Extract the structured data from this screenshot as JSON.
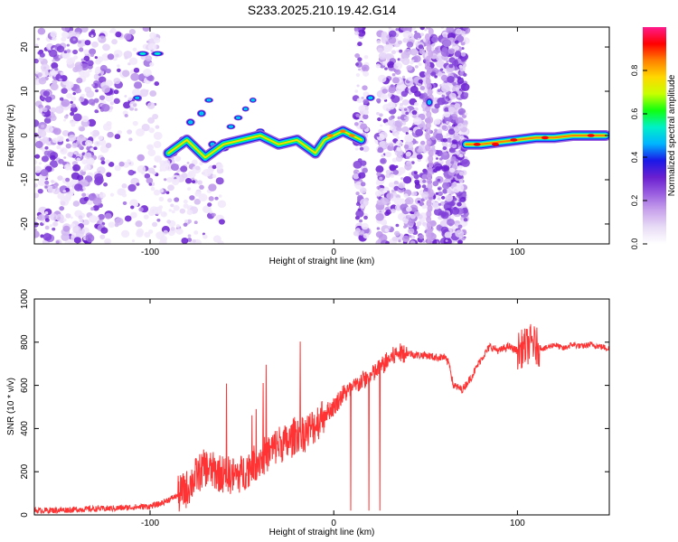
{
  "title": "S233.2025.210.19.42.G14",
  "chart_data": [
    {
      "type": "heatmap",
      "xlabel": "Height of straight line (km)",
      "ylabel": "Frequency (Hz)",
      "xlim": [
        -163,
        150
      ],
      "ylim": [
        -24.5,
        24.5
      ],
      "x_ticks": [
        -100,
        0,
        100
      ],
      "y_ticks": [
        -20,
        -10,
        0,
        10,
        20
      ],
      "colorbar": {
        "label": "Normalized spectral amplitude",
        "range": [
          0,
          1
        ],
        "ticks": [
          0.0,
          0.2,
          0.4,
          0.6,
          0.8
        ],
        "tick_labels": [
          "0.0",
          "0.2",
          "0.4",
          "0.6",
          "0.8"
        ]
      },
      "colormap": [
        "#ffffff",
        "#e8dcf6",
        "#c9a4ec",
        "#9b5fe0",
        "#6a1fd0",
        "#1a18e8",
        "#00b4ff",
        "#00f0c8",
        "#10ff10",
        "#c8ff00",
        "#ffd800",
        "#ff8000",
        "#ff0000",
        "#ff1a8c"
      ],
      "ridge": {
        "description_points_x": [
          -90,
          -80,
          -70,
          -60,
          -50,
          -40,
          -30,
          -20,
          -10,
          -5,
          0,
          5,
          10,
          15
        ],
        "frequency_hz": [
          -4,
          -1,
          -5,
          -2,
          -1,
          0,
          -2,
          -1,
          -4,
          -1,
          0,
          1,
          0,
          -1
        ]
      },
      "ridge_right": {
        "x": [
          72,
          80,
          90,
          100,
          110,
          120,
          130,
          140,
          148
        ],
        "frequency_hz": [
          -2,
          -2,
          -1.5,
          -1,
          -0.5,
          -0.5,
          0,
          0,
          0
        ]
      }
    },
    {
      "type": "line",
      "xlabel": "Height of straight line (km)",
      "ylabel": "SNR (10 * v/v)",
      "xlim": [
        -163,
        150
      ],
      "ylim": [
        0,
        1000
      ],
      "x_ticks": [
        -100,
        0,
        100
      ],
      "y_ticks": [
        0,
        200,
        400,
        600,
        800,
        1000
      ],
      "series": [
        {
          "color": "#ff3333",
          "x": [
            -163,
            -150,
            -140,
            -130,
            -120,
            -110,
            -100,
            -95,
            -90,
            -85,
            -80,
            -75,
            -70,
            -65,
            -60,
            -55,
            -50,
            -45,
            -40,
            -35,
            -30,
            -25,
            -20,
            -15,
            -10,
            -5,
            0,
            5,
            10,
            15,
            20,
            25,
            30,
            35,
            40,
            45,
            50,
            55,
            60,
            63,
            65,
            70,
            75,
            80,
            85,
            90,
            95,
            100,
            105,
            108,
            110,
            115,
            120,
            125,
            130,
            135,
            140,
            145,
            150
          ],
          "y": [
            20,
            22,
            25,
            28,
            30,
            35,
            40,
            50,
            70,
            90,
            120,
            180,
            220,
            200,
            190,
            180,
            190,
            230,
            260,
            290,
            330,
            330,
            380,
            380,
            420,
            470,
            500,
            560,
            580,
            620,
            640,
            680,
            720,
            750,
            750,
            740,
            740,
            730,
            730,
            700,
            600,
            580,
            640,
            720,
            780,
            760,
            780,
            760,
            780,
            800,
            780,
            770,
            790,
            770,
            790,
            780,
            790,
            780,
            770
          ]
        }
      ]
    }
  ]
}
